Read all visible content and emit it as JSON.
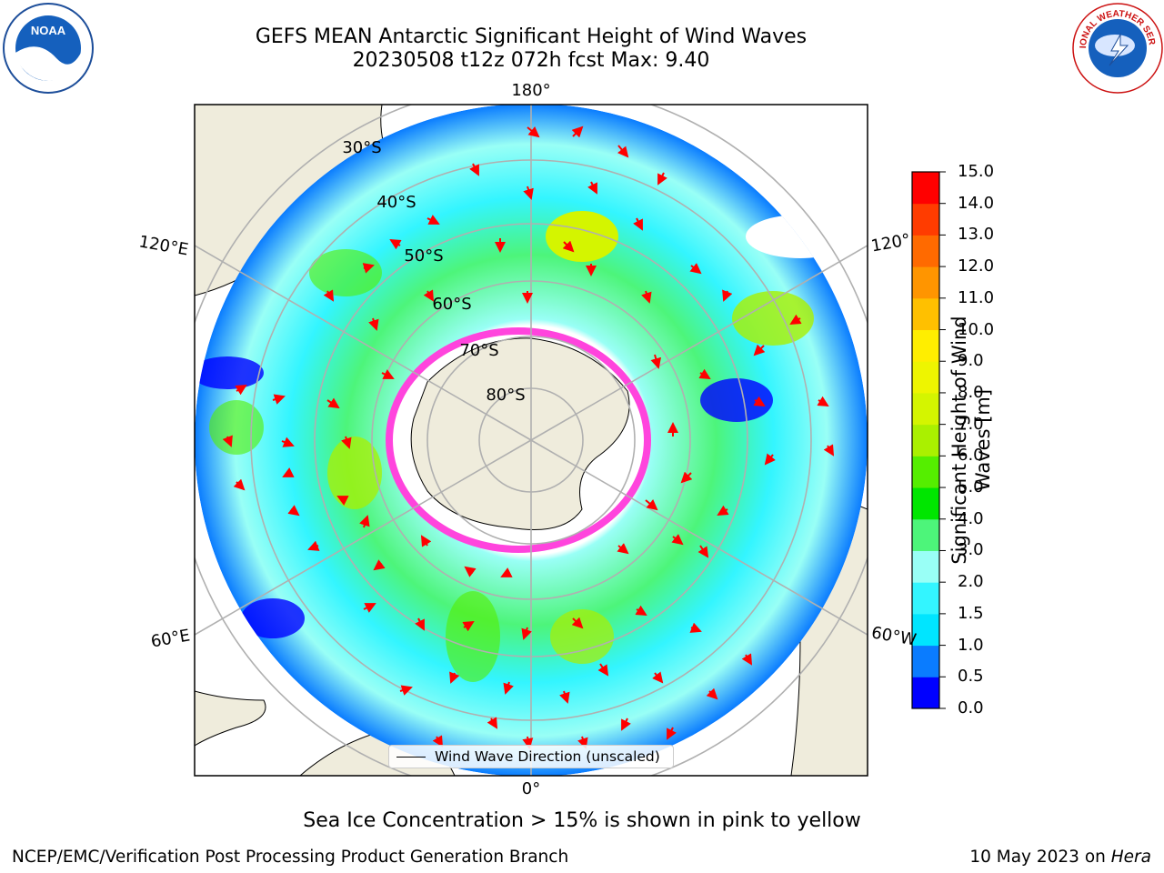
{
  "header": {
    "title_line1": "GEFS MEAN Antarctic Significant Height of Wind Waves",
    "title_line2": "20230508 t12z 072h fcst   Max: 9.40"
  },
  "logos": {
    "left": {
      "icon": "noaa-logo-icon",
      "text": "NOAA"
    },
    "right": {
      "icon": "nws-logo-icon",
      "text": "NATIONAL WEATHER SERVICE"
    }
  },
  "map": {
    "projection": "south-polar-stereographic",
    "longitude_labels": [
      "180°",
      "120°E",
      "120°",
      "60°E",
      "60°W",
      "0°"
    ],
    "latitude_labels": [
      "30°S",
      "40°S",
      "50°S",
      "60°S",
      "70°S",
      "80°S"
    ],
    "colors": {
      "land": "#efecdc",
      "ice_edge": "#ff44dd",
      "arrows": "#ff0000",
      "gridlines": "#b0b0b0"
    }
  },
  "colorbar": {
    "label_line1": "Significant Height of Wind",
    "label_line2": "Waves [m]",
    "ticks": [
      "0.0",
      "0.5",
      "1.0",
      "1.5",
      "2.0",
      "3.0",
      "4.0",
      "5.0",
      "6.0",
      "7.0",
      "8.0",
      "9.0",
      "10.0",
      "11.0",
      "12.0",
      "13.0",
      "14.0",
      "15.0"
    ],
    "colors": [
      "#0000ff",
      "#0a7cff",
      "#00e5ff",
      "#33f5ff",
      "#99fff6",
      "#4df57a",
      "#00e600",
      "#55ee00",
      "#aaf000",
      "#d4f500",
      "#eef500",
      "#ffee00",
      "#ffc000",
      "#ff9500",
      "#ff6a00",
      "#ff3c00",
      "#ff0000"
    ]
  },
  "legend": {
    "label": "Wind Wave Direction (unscaled)"
  },
  "notes": {
    "sea_ice": "Sea Ice Concentration > 15% is shown in pink to yellow"
  },
  "footer": {
    "left": "NCEP/EMC/Verification Post Processing Product Generation Branch",
    "right_date": "10 May 2023 on ",
    "right_machine": "Hera"
  }
}
